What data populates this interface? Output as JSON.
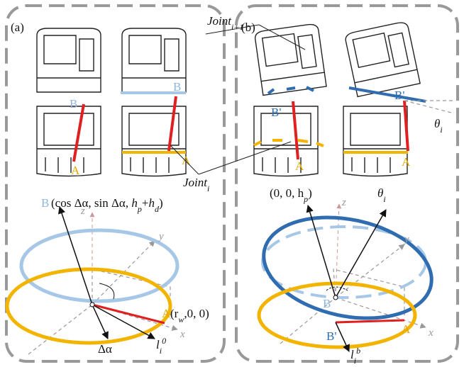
{
  "panels": [
    {
      "label": "(a)",
      "upper": {
        "left_b": "B",
        "left_a": "A",
        "right_b": "B",
        "right_a": "A"
      },
      "lower": {
        "b_label": "B",
        "b_coords": [
          {
            "t": " (cos Δα, sin Δα, "
          },
          {
            "i": "h"
          },
          {
            "sub": "p"
          },
          {
            "t": "+"
          },
          {
            "i": "h"
          },
          {
            "sub": "d"
          },
          {
            "t": ")"
          }
        ],
        "axis_z": "z",
        "axis_y": "y",
        "axis_x": "x",
        "a_label": "A",
        "a_coords": [
          {
            "t": " (r"
          },
          {
            "sub": "w"
          },
          {
            "t": ",0, 0)"
          }
        ],
        "angle": "Δα",
        "length": [
          {
            "i": "l"
          },
          {
            "sub": "i"
          },
          {
            "sup": "0"
          }
        ]
      }
    },
    {
      "label": "(b)",
      "upper": {
        "left_b": "B'",
        "left_a": "A",
        "right_b": "B'",
        "right_a": "A",
        "tilt": [
          {
            "i": "θ"
          },
          {
            "sub": "i"
          }
        ]
      },
      "lower": {
        "origin_coords": [
          {
            "t": "(0, 0, h"
          },
          {
            "sub": "p"
          },
          {
            "t": ")"
          }
        ],
        "angle": [
          {
            "i": "θ"
          },
          {
            "sub": "i"
          }
        ],
        "axis_z": "z",
        "axis_y": "y",
        "axis_x": "x",
        "b_label": "B",
        "b_prime_label": "B'",
        "a_label": "A",
        "length": [
          {
            "i": "l"
          },
          {
            "sub": "i"
          },
          {
            "sup": "b"
          }
        ]
      }
    }
  ],
  "callouts": {
    "joint_next": [
      {
        "i": "Joint"
      },
      {
        "sub": "i+1"
      }
    ],
    "joint": [
      {
        "i": "Joint"
      },
      {
        "sub": "i"
      }
    ]
  }
}
